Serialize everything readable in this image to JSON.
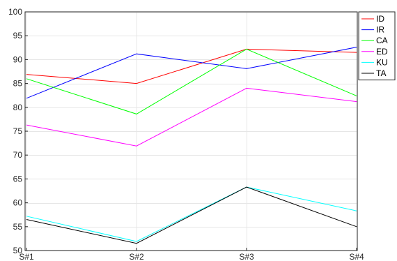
{
  "chart_data": {
    "type": "line",
    "categories": [
      "S#1",
      "S#2",
      "S#3",
      "S#4"
    ],
    "ylim": [
      50,
      100
    ],
    "yticks": [
      50,
      55,
      60,
      65,
      70,
      75,
      80,
      85,
      90,
      95,
      100
    ],
    "grid": true,
    "legend_position": "top-right",
    "series": [
      {
        "name": "ID",
        "color": "#ff0000",
        "values": [
          86.9,
          85.0,
          92.2,
          91.5
        ]
      },
      {
        "name": "IR",
        "color": "#0000ff",
        "values": [
          81.9,
          91.2,
          88.1,
          92.6
        ]
      },
      {
        "name": "CA",
        "color": "#00ff00",
        "values": [
          86.0,
          78.6,
          92.2,
          82.4
        ]
      },
      {
        "name": "ED",
        "color": "#ff00ff",
        "values": [
          76.3,
          71.9,
          84.0,
          81.2
        ]
      },
      {
        "name": "KU",
        "color": "#00ffff",
        "values": [
          57.2,
          51.9,
          63.3,
          58.3
        ]
      },
      {
        "name": "TA",
        "color": "#000000",
        "values": [
          56.5,
          51.5,
          63.3,
          55.0
        ]
      }
    ]
  }
}
